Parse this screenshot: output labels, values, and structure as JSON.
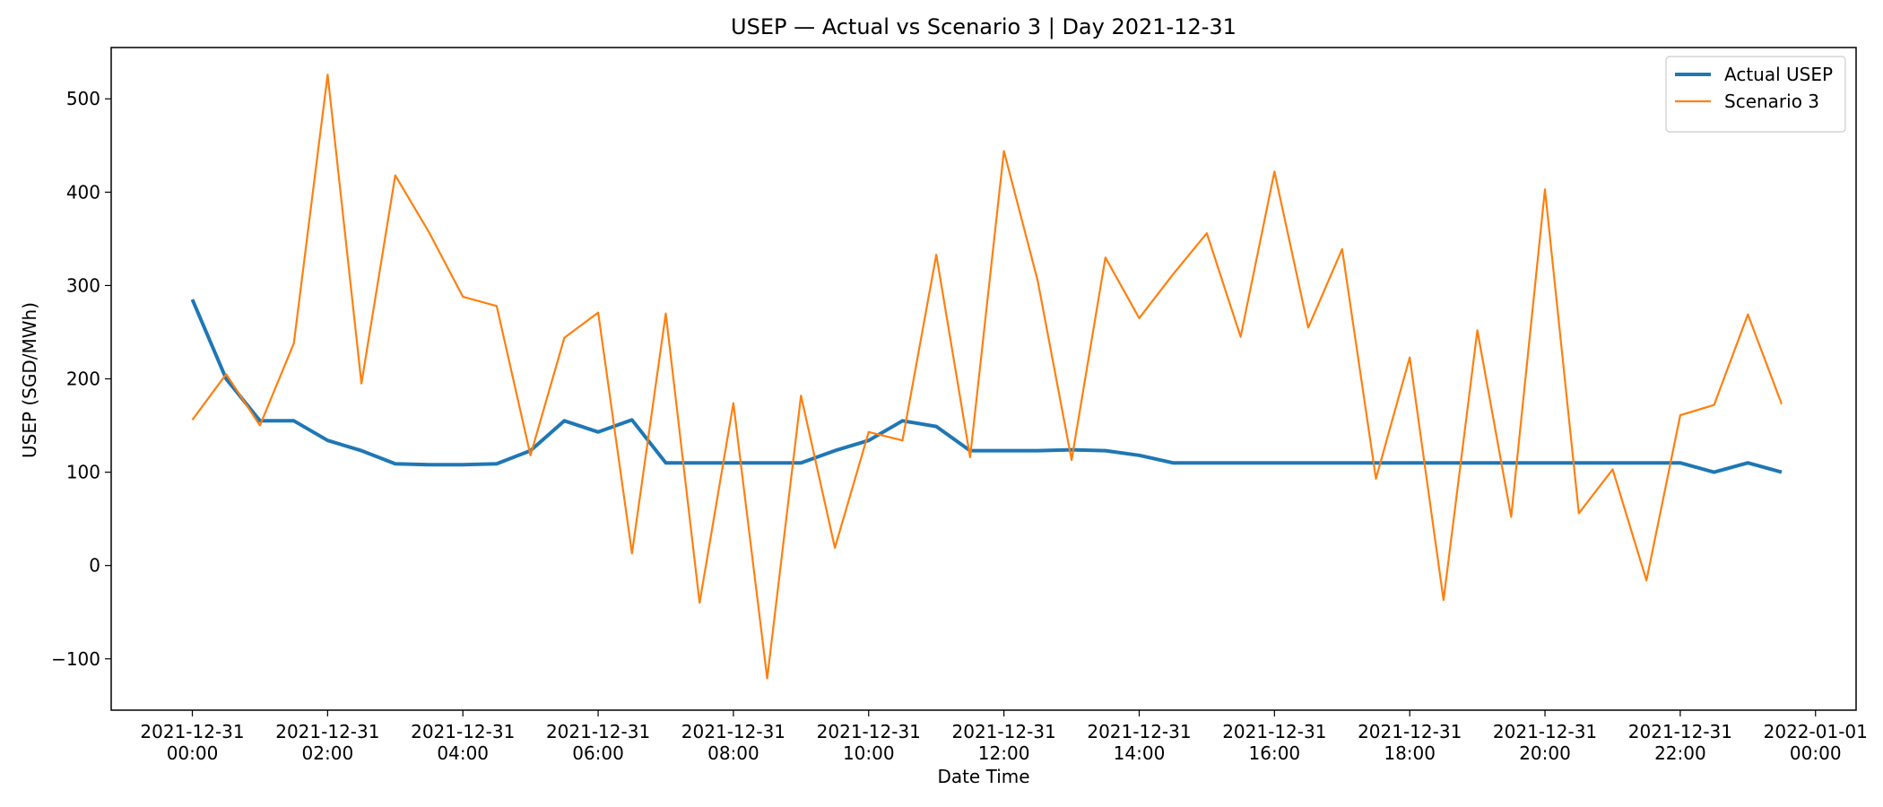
{
  "chart_data": {
    "type": "line",
    "title": "USEP — Actual vs Scenario 3 | Day 2021-12-31",
    "xlabel": "Date Time",
    "ylabel": "USEP (SGD/MWh)",
    "ylim": [
      -155,
      555
    ],
    "yticks": [
      -100,
      0,
      100,
      200,
      300,
      400,
      500
    ],
    "ytick_labels": [
      "−100",
      "0",
      "100",
      "200",
      "300",
      "400",
      "500"
    ],
    "xlim_hours": [
      -1.2,
      24.6
    ],
    "xticks": [
      {
        "hour": 0,
        "line1": "2021-12-31",
        "line2": "00:00"
      },
      {
        "hour": 2,
        "line1": "2021-12-31",
        "line2": "02:00"
      },
      {
        "hour": 4,
        "line1": "2021-12-31",
        "line2": "04:00"
      },
      {
        "hour": 6,
        "line1": "2021-12-31",
        "line2": "06:00"
      },
      {
        "hour": 8,
        "line1": "2021-12-31",
        "line2": "08:00"
      },
      {
        "hour": 10,
        "line1": "2021-12-31",
        "line2": "10:00"
      },
      {
        "hour": 12,
        "line1": "2021-12-31",
        "line2": "12:00"
      },
      {
        "hour": 14,
        "line1": "2021-12-31",
        "line2": "14:00"
      },
      {
        "hour": 16,
        "line1": "2021-12-31",
        "line2": "16:00"
      },
      {
        "hour": 18,
        "line1": "2021-12-31",
        "line2": "18:00"
      },
      {
        "hour": 20,
        "line1": "2021-12-31",
        "line2": "20:00"
      },
      {
        "hour": 22,
        "line1": "2021-12-31",
        "line2": "22:00"
      },
      {
        "hour": 24,
        "line1": "2022-01-01",
        "line2": "00:00"
      }
    ],
    "x_hours": [
      0,
      0.5,
      1,
      1.5,
      2,
      2.5,
      3,
      3.5,
      4,
      4.5,
      5,
      5.5,
      6,
      6.5,
      7,
      7.5,
      8,
      8.5,
      9,
      9.5,
      10,
      10.5,
      11,
      11.5,
      12,
      12.5,
      13,
      13.5,
      14,
      14.5,
      15,
      15.5,
      16,
      16.5,
      17,
      17.5,
      18,
      18.5,
      19,
      19.5,
      20,
      20.5,
      21,
      21.5,
      22,
      22.5,
      23,
      23.5
    ],
    "legend_position": "top-right",
    "series": [
      {
        "name": "Actual USEP",
        "color": "#1f77b4",
        "values": [
          285,
          200,
          155,
          155,
          134,
          123,
          109,
          108,
          108,
          109,
          123,
          155,
          143,
          156,
          110,
          110,
          110,
          110,
          110,
          123,
          134,
          155,
          149,
          123,
          123,
          123,
          124,
          123,
          118,
          110,
          110,
          110,
          110,
          110,
          110,
          110,
          110,
          110,
          110,
          110,
          110,
          110,
          110,
          110,
          110,
          100,
          110,
          100
        ]
      },
      {
        "name": "Scenario 3",
        "color": "#ff7f0e",
        "values": [
          156,
          205,
          150,
          238,
          526,
          195,
          418,
          357,
          288,
          278,
          118,
          244,
          271,
          13,
          270,
          -40,
          174,
          -121,
          182,
          19,
          143,
          134,
          333,
          116,
          444,
          305,
          113,
          330,
          265,
          312,
          356,
          245,
          422,
          255,
          339,
          93,
          223,
          -37,
          252,
          52,
          403,
          56,
          103,
          -16,
          161,
          172,
          269,
          173
        ]
      }
    ]
  }
}
